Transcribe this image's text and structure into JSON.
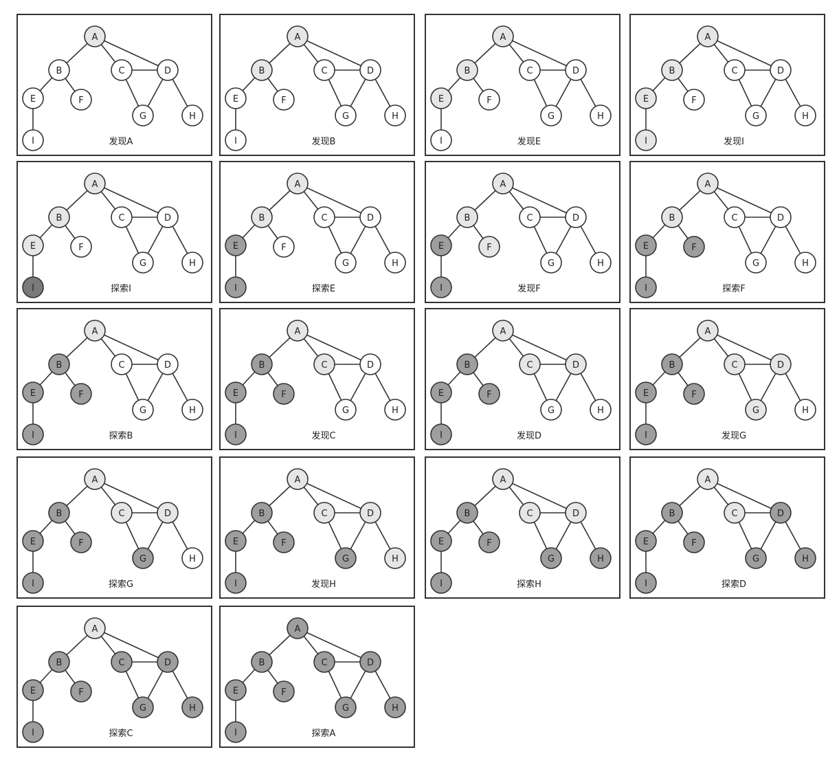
{
  "legend": {
    "white": "#ffffff",
    "discovered": "#e6e6e6",
    "explored": "#9e9e9e",
    "current": "#7a7a7a",
    "stroke": "#333333"
  },
  "nodes": [
    "A",
    "B",
    "C",
    "D",
    "E",
    "F",
    "G",
    "H",
    "I"
  ],
  "edges": [
    [
      "A",
      "B"
    ],
    [
      "A",
      "C"
    ],
    [
      "A",
      "D"
    ],
    [
      "B",
      "E"
    ],
    [
      "B",
      "F"
    ],
    [
      "C",
      "D"
    ],
    [
      "C",
      "G"
    ],
    [
      "D",
      "G"
    ],
    [
      "D",
      "H"
    ],
    [
      "E",
      "I"
    ]
  ],
  "panels": [
    {
      "caption": "发现A",
      "states": {
        "A": "discovered",
        "B": "white",
        "C": "white",
        "D": "white",
        "E": "white",
        "F": "white",
        "G": "white",
        "H": "white",
        "I": "white"
      }
    },
    {
      "caption": "发现B",
      "states": {
        "A": "discovered",
        "B": "discovered",
        "C": "white",
        "D": "white",
        "E": "white",
        "F": "white",
        "G": "white",
        "H": "white",
        "I": "white"
      }
    },
    {
      "caption": "发现E",
      "states": {
        "A": "discovered",
        "B": "discovered",
        "C": "white",
        "D": "white",
        "E": "discovered",
        "F": "white",
        "G": "white",
        "H": "white",
        "I": "white"
      }
    },
    {
      "caption": "发现I",
      "states": {
        "A": "discovered",
        "B": "discovered",
        "C": "white",
        "D": "white",
        "E": "discovered",
        "F": "white",
        "G": "white",
        "H": "white",
        "I": "discovered"
      }
    },
    {
      "caption": "探索I",
      "states": {
        "A": "discovered",
        "B": "discovered",
        "C": "white",
        "D": "white",
        "E": "discovered",
        "F": "white",
        "G": "white",
        "H": "white",
        "I": "current"
      }
    },
    {
      "caption": "探索E",
      "states": {
        "A": "discovered",
        "B": "discovered",
        "C": "white",
        "D": "white",
        "E": "explored",
        "F": "white",
        "G": "white",
        "H": "white",
        "I": "explored"
      }
    },
    {
      "caption": "发现F",
      "states": {
        "A": "discovered",
        "B": "discovered",
        "C": "white",
        "D": "white",
        "E": "explored",
        "F": "discovered",
        "G": "white",
        "H": "white",
        "I": "explored"
      }
    },
    {
      "caption": "探索F",
      "states": {
        "A": "discovered",
        "B": "discovered",
        "C": "white",
        "D": "white",
        "E": "explored",
        "F": "explored",
        "G": "white",
        "H": "white",
        "I": "explored"
      }
    },
    {
      "caption": "探索B",
      "states": {
        "A": "discovered",
        "B": "explored",
        "C": "white",
        "D": "white",
        "E": "explored",
        "F": "explored",
        "G": "white",
        "H": "white",
        "I": "explored"
      }
    },
    {
      "caption": "发现C",
      "states": {
        "A": "discovered",
        "B": "explored",
        "C": "discovered",
        "D": "white",
        "E": "explored",
        "F": "explored",
        "G": "white",
        "H": "white",
        "I": "explored"
      }
    },
    {
      "caption": "发现D",
      "states": {
        "A": "discovered",
        "B": "explored",
        "C": "discovered",
        "D": "discovered",
        "E": "explored",
        "F": "explored",
        "G": "white",
        "H": "white",
        "I": "explored"
      }
    },
    {
      "caption": "发现G",
      "states": {
        "A": "discovered",
        "B": "explored",
        "C": "discovered",
        "D": "discovered",
        "E": "explored",
        "F": "explored",
        "G": "discovered",
        "H": "white",
        "I": "explored"
      }
    },
    {
      "caption": "探索G",
      "states": {
        "A": "discovered",
        "B": "explored",
        "C": "discovered",
        "D": "discovered",
        "E": "explored",
        "F": "explored",
        "G": "explored",
        "H": "white",
        "I": "explored"
      }
    },
    {
      "caption": "发现H",
      "states": {
        "A": "discovered",
        "B": "explored",
        "C": "discovered",
        "D": "discovered",
        "E": "explored",
        "F": "explored",
        "G": "explored",
        "H": "discovered",
        "I": "explored"
      }
    },
    {
      "caption": "探索H",
      "states": {
        "A": "discovered",
        "B": "explored",
        "C": "discovered",
        "D": "discovered",
        "E": "explored",
        "F": "explored",
        "G": "explored",
        "H": "explored",
        "I": "explored"
      }
    },
    {
      "caption": "探索D",
      "states": {
        "A": "discovered",
        "B": "explored",
        "C": "discovered",
        "D": "explored",
        "E": "explored",
        "F": "explored",
        "G": "explored",
        "H": "explored",
        "I": "explored"
      }
    },
    {
      "caption": "探索C",
      "states": {
        "A": "discovered",
        "B": "explored",
        "C": "explored",
        "D": "explored",
        "E": "explored",
        "F": "explored",
        "G": "explored",
        "H": "explored",
        "I": "explored"
      }
    },
    {
      "caption": "探索A",
      "states": {
        "A": "explored",
        "B": "explored",
        "C": "explored",
        "D": "explored",
        "E": "explored",
        "F": "explored",
        "G": "explored",
        "H": "explored",
        "I": "explored"
      }
    }
  ]
}
